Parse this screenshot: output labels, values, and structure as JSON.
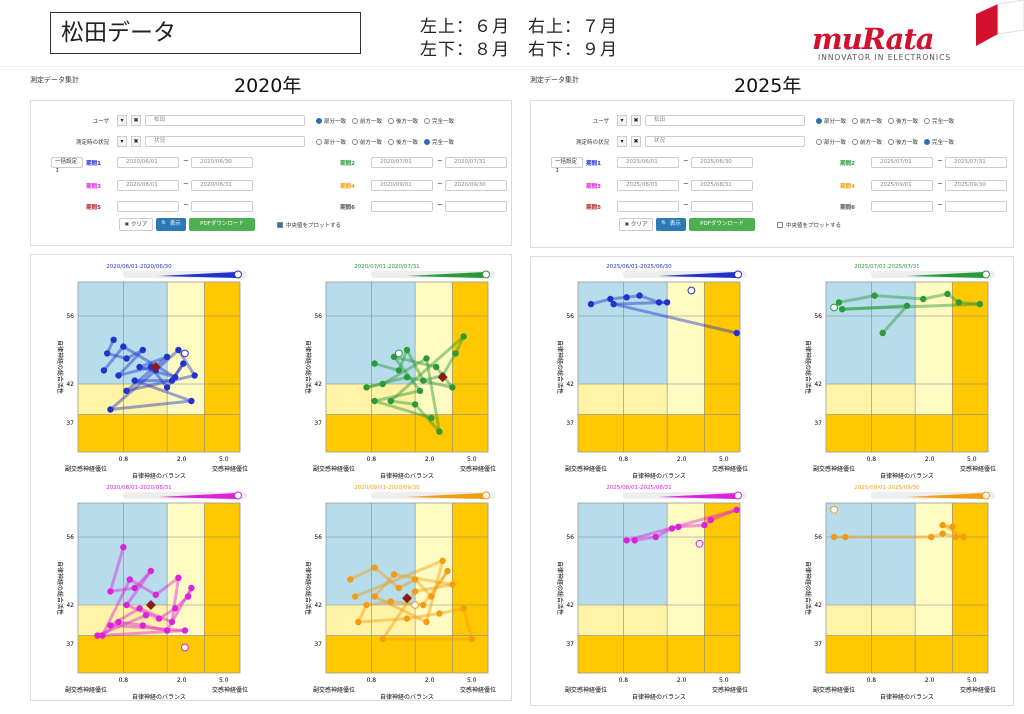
{
  "header": {
    "title": "松田データ",
    "legend_line1": "左上：６月　右上：７月",
    "legend_line2": "左下：８月　右下：９月",
    "logo_text": "muRata",
    "logo_tagline": "INNOVATOR IN ELECTRONICS"
  },
  "form_labels": {
    "user": "ユーザ",
    "condition": "測定時の状況",
    "period1": "期間1",
    "period2": "期間2",
    "period3": "期間3",
    "period4": "期間4",
    "period5": "期間5",
    "period6": "期間6",
    "batch_button": "一括設定 ↕",
    "clear_button": "✖ クリア",
    "show_button": "🔍 表示",
    "pdf_button": "PDFダウンロード",
    "center_checkbox": "中央値をプロットする",
    "radio_options": [
      "部分一致",
      "前方一致",
      "後方一致",
      "完全一致"
    ]
  },
  "sections": [
    {
      "year": "2020年",
      "panel_title": "測定データ集計",
      "user_value": "松田",
      "condition_value": "状況",
      "user_radio": 0,
      "condition_radio": 3,
      "center_checked": true,
      "periods": [
        [
          "2020/06/01",
          "2020/06/30"
        ],
        [
          "2020/07/01",
          "2020/07/31"
        ],
        [
          "2020/08/01",
          "2020/08/31"
        ],
        [
          "2020/09/01",
          "2020/09/30"
        ],
        [
          "",
          ""
        ],
        [
          "",
          ""
        ]
      ]
    },
    {
      "year": "2025年",
      "panel_title": "測定データ集計",
      "user_value": "松田",
      "condition_value": "状況",
      "user_radio": 0,
      "condition_radio": 3,
      "center_checked": false,
      "periods": [
        [
          "2025/06/01",
          "2025/06/30"
        ],
        [
          "2025/07/01",
          "2025/07/31"
        ],
        [
          "2025/08/01",
          "2025/08/31"
        ],
        [
          "2025/09/01",
          "2025/09/30"
        ],
        [
          "",
          ""
        ],
        [
          "",
          ""
        ]
      ]
    }
  ],
  "chart_common": {
    "ylabel": "自律神経の総合活性",
    "xlabel": "自律神経のバランス",
    "x_left_label": "副交感神経優位",
    "x_right_label": "交感神経優位",
    "y_ticks": [
      "56",
      "42",
      "37"
    ],
    "x_ticks": [
      "0.8",
      "2.0",
      "5.0"
    ],
    "colors": {
      "blue_zone": "#b7dcec",
      "light_yellow": "#fffbc2",
      "yellow_low": "#fff3a6",
      "orange_zone": "#ffc800",
      "grid": "#888"
    }
  },
  "chart_data": [
    {
      "type": "scatter",
      "title": "2020/06/01-2020/06/30",
      "color": "#2233cc",
      "x_range": [
        0,
        1
      ],
      "y_range": [
        0,
        1
      ],
      "points": [
        [
          0.22,
          0.66
        ],
        [
          0.18,
          0.58
        ],
        [
          0.3,
          0.55
        ],
        [
          0.4,
          0.6
        ],
        [
          0.25,
          0.45
        ],
        [
          0.45,
          0.5
        ],
        [
          0.55,
          0.38
        ],
        [
          0.65,
          0.52
        ],
        [
          0.58,
          0.42
        ],
        [
          0.35,
          0.42
        ],
        [
          0.7,
          0.3
        ],
        [
          0.2,
          0.25
        ],
        [
          0.48,
          0.48
        ],
        [
          0.62,
          0.6
        ],
        [
          0.72,
          0.45
        ],
        [
          0.3,
          0.36
        ],
        [
          0.55,
          0.56
        ],
        [
          0.38,
          0.5
        ],
        [
          0.6,
          0.44
        ],
        [
          0.28,
          0.62
        ],
        [
          0.16,
          0.48
        ]
      ],
      "median": [
        0.48,
        0.5
      ],
      "open_point": [
        0.66,
        0.58
      ]
    },
    {
      "type": "scatter",
      "title": "2020/07/01-2020/07/31",
      "color": "#2a9a3a",
      "x_range": [
        0,
        1
      ],
      "y_range": [
        0,
        1
      ],
      "points": [
        [
          0.3,
          0.52
        ],
        [
          0.45,
          0.48
        ],
        [
          0.5,
          0.6
        ],
        [
          0.6,
          0.42
        ],
        [
          0.72,
          0.45
        ],
        [
          0.8,
          0.58
        ],
        [
          0.85,
          0.68
        ],
        [
          0.4,
          0.3
        ],
        [
          0.55,
          0.28
        ],
        [
          0.7,
          0.12
        ],
        [
          0.62,
          0.55
        ],
        [
          0.35,
          0.4
        ],
        [
          0.25,
          0.38
        ],
        [
          0.5,
          0.44
        ],
        [
          0.78,
          0.38
        ],
        [
          0.68,
          0.5
        ],
        [
          0.42,
          0.56
        ],
        [
          0.58,
          0.36
        ],
        [
          0.3,
          0.3
        ],
        [
          0.65,
          0.2
        ]
      ],
      "median": [
        0.72,
        0.44
      ],
      "open_point": [
        0.45,
        0.58
      ]
    },
    {
      "type": "scatter",
      "title": "2020/08/01-2020/08/31",
      "color": "#dd22dd",
      "x_range": [
        0,
        1
      ],
      "y_range": [
        0,
        1
      ],
      "points": [
        [
          0.28,
          0.74
        ],
        [
          0.2,
          0.48
        ],
        [
          0.35,
          0.5
        ],
        [
          0.45,
          0.6
        ],
        [
          0.3,
          0.4
        ],
        [
          0.5,
          0.32
        ],
        [
          0.6,
          0.38
        ],
        [
          0.68,
          0.45
        ],
        [
          0.7,
          0.5
        ],
        [
          0.55,
          0.25
        ],
        [
          0.4,
          0.28
        ],
        [
          0.25,
          0.3
        ],
        [
          0.15,
          0.22
        ],
        [
          0.32,
          0.55
        ],
        [
          0.48,
          0.46
        ],
        [
          0.62,
          0.56
        ],
        [
          0.58,
          0.3
        ],
        [
          0.38,
          0.38
        ],
        [
          0.2,
          0.28
        ],
        [
          0.66,
          0.25
        ],
        [
          0.12,
          0.22
        ],
        [
          0.42,
          0.34
        ]
      ],
      "median": [
        0.45,
        0.4
      ],
      "open_point": [
        0.66,
        0.15
      ]
    },
    {
      "type": "scatter",
      "title": "2020/09/01-2020/09/30",
      "color": "#f39c12",
      "x_range": [
        0,
        1
      ],
      "y_range": [
        0,
        1
      ],
      "points": [
        [
          0.15,
          0.55
        ],
        [
          0.3,
          0.62
        ],
        [
          0.45,
          0.5
        ],
        [
          0.55,
          0.55
        ],
        [
          0.65,
          0.45
        ],
        [
          0.75,
          0.6
        ],
        [
          0.6,
          0.4
        ],
        [
          0.4,
          0.42
        ],
        [
          0.25,
          0.4
        ],
        [
          0.2,
          0.3
        ],
        [
          0.5,
          0.32
        ],
        [
          0.7,
          0.35
        ],
        [
          0.85,
          0.38
        ],
        [
          0.9,
          0.2
        ],
        [
          0.35,
          0.2
        ],
        [
          0.55,
          0.48
        ],
        [
          0.78,
          0.52
        ],
        [
          0.42,
          0.58
        ],
        [
          0.3,
          0.45
        ],
        [
          0.62,
          0.3
        ],
        [
          0.72,
          0.66
        ],
        [
          0.18,
          0.45
        ]
      ],
      "median": [
        0.5,
        0.44
      ],
      "open_point": [
        0.55,
        0.4
      ]
    },
    {
      "type": "scatter",
      "title": "2025/06/01-2025/06/30",
      "color": "#2233cc",
      "x_range": [
        0,
        1
      ],
      "y_range": [
        0,
        1
      ],
      "points": [
        [
          0.08,
          0.87
        ],
        [
          0.2,
          0.9
        ],
        [
          0.3,
          0.91
        ],
        [
          0.38,
          0.92
        ],
        [
          0.5,
          0.88
        ],
        [
          0.55,
          0.88
        ],
        [
          0.22,
          0.87
        ],
        [
          0.98,
          0.7
        ]
      ],
      "median": null,
      "open_point": [
        0.7,
        0.95
      ]
    },
    {
      "type": "scatter",
      "title": "2025/07/01-2025/07/31",
      "color": "#2a9a3a",
      "x_range": [
        0,
        1
      ],
      "y_range": [
        0,
        1
      ],
      "points": [
        [
          0.08,
          0.88
        ],
        [
          0.3,
          0.92
        ],
        [
          0.6,
          0.9
        ],
        [
          0.75,
          0.93
        ],
        [
          0.82,
          0.88
        ],
        [
          0.95,
          0.87
        ],
        [
          0.1,
          0.84
        ],
        [
          0.5,
          0.86
        ],
        [
          0.35,
          0.7
        ]
      ],
      "median": null,
      "open_point": [
        0.05,
        0.85
      ]
    },
    {
      "type": "scatter",
      "title": "2025/08/01-2025/08/31",
      "color": "#dd22dd",
      "x_range": [
        0,
        1
      ],
      "y_range": [
        0,
        1
      ],
      "points": [
        [
          0.35,
          0.78
        ],
        [
          0.48,
          0.8
        ],
        [
          0.58,
          0.85
        ],
        [
          0.62,
          0.86
        ],
        [
          0.78,
          0.87
        ],
        [
          0.82,
          0.9
        ],
        [
          0.98,
          0.96
        ],
        [
          0.3,
          0.78
        ]
      ],
      "median": null,
      "open_point": [
        0.75,
        0.76
      ]
    },
    {
      "type": "scatter",
      "title": "2025/09/01-2025/09/30",
      "color": "#f39c12",
      "x_range": [
        0,
        1
      ],
      "y_range": [
        0,
        1
      ],
      "points": [
        [
          0.05,
          0.8
        ],
        [
          0.12,
          0.8
        ],
        [
          0.65,
          0.8
        ],
        [
          0.72,
          0.82
        ],
        [
          0.8,
          0.8
        ],
        [
          0.85,
          0.8
        ],
        [
          0.72,
          0.87
        ],
        [
          0.78,
          0.86
        ]
      ],
      "median": null,
      "open_point": [
        0.05,
        0.96
      ]
    }
  ]
}
